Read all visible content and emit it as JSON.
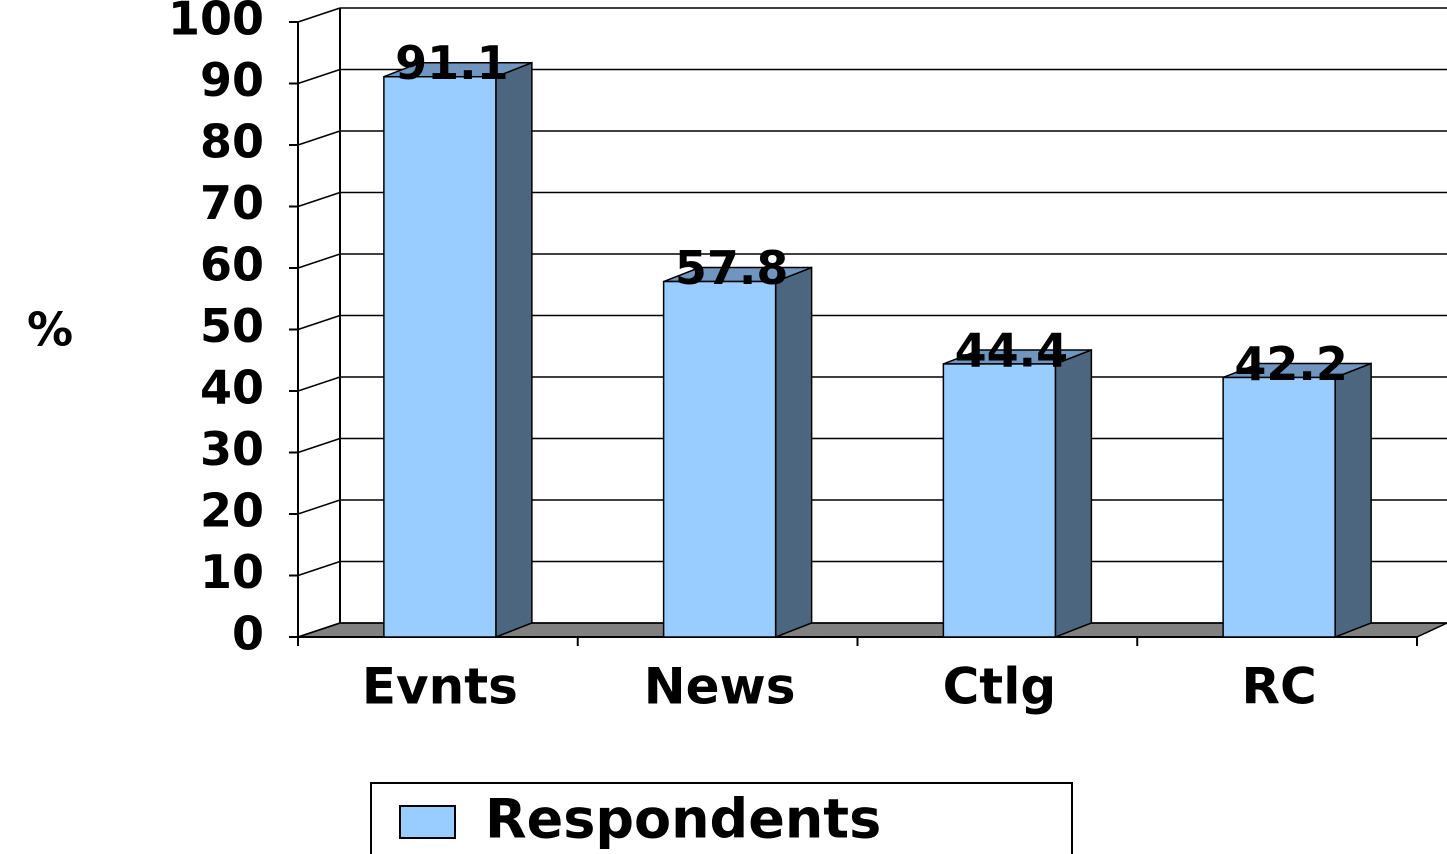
{
  "chart_data": {
    "type": "bar3d",
    "y_label": "%",
    "categories": [
      "Evnts",
      "News",
      "Ctlg",
      "RC"
    ],
    "series": [
      {
        "name": "Respondents",
        "color": "#99ccff",
        "values": [
          91.1,
          57.8,
          44.4,
          42.2
        ]
      }
    ],
    "ylim": [
      0,
      100
    ],
    "yticks": [
      0,
      10,
      20,
      30,
      40,
      50,
      60,
      70,
      80,
      90,
      100
    ],
    "grid": true,
    "legend": "bottom"
  }
}
